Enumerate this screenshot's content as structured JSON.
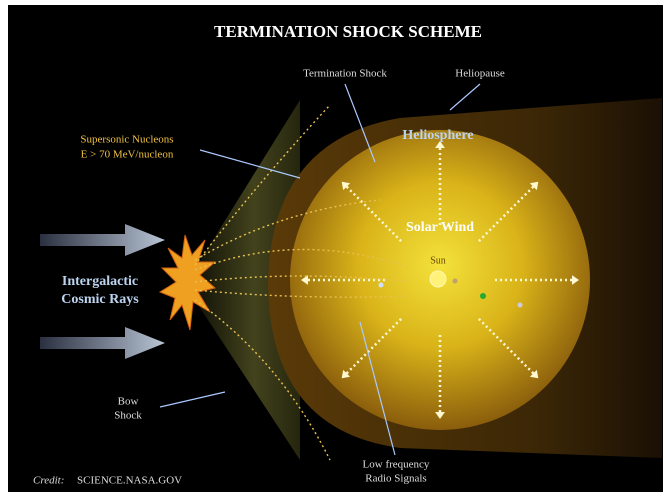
{
  "title": "TERMINATION SHOCK SCHEME",
  "labels": {
    "termination_shock": "Termination Shock",
    "heliopause": "Heliopause",
    "heliosphere": "Heliosphere",
    "supersonic_nucleons": [
      "Supersonic Nucleons",
      "E > 70 MeV/nucleon"
    ],
    "solar_wind": "Solar Wind",
    "sun": "Sun",
    "cosmic_rays": [
      "Intergalactic",
      "Cosmic Rays"
    ],
    "bow_shock": [
      "Bow",
      "Shock"
    ],
    "radio_signals": [
      "Low frequency",
      "Radio Signals"
    ]
  },
  "credit": {
    "label": "Credit:",
    "source": "SCIENCE.NASA.GOV"
  }
}
